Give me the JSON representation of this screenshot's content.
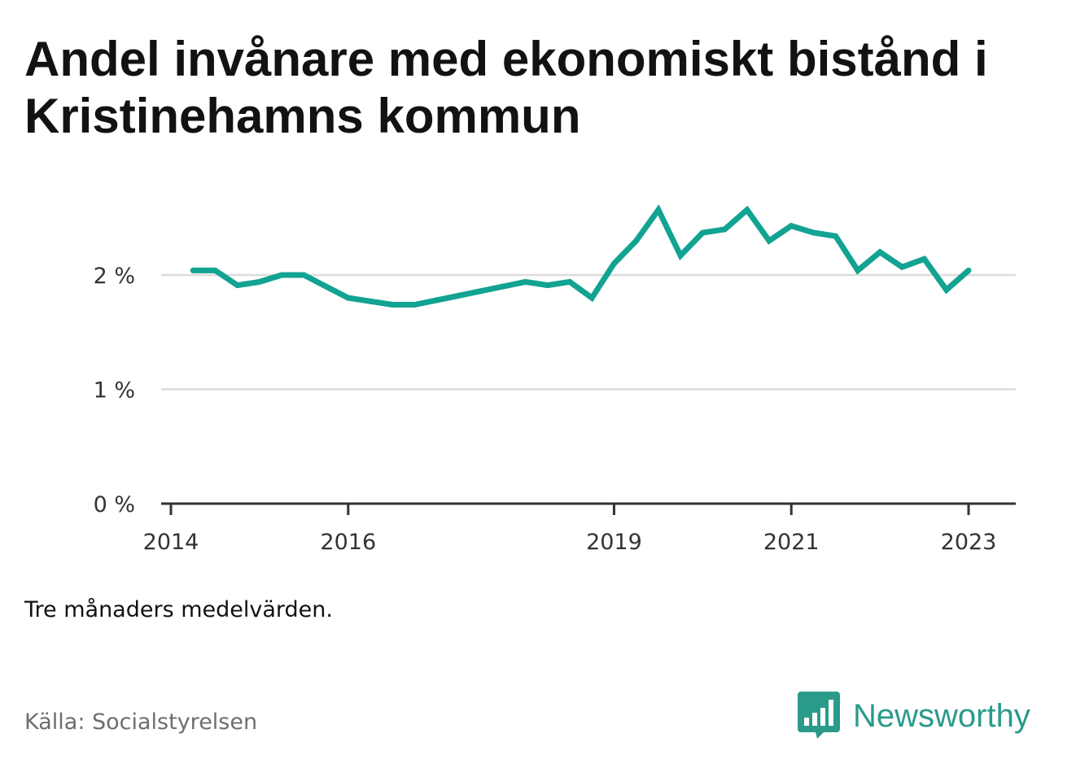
{
  "title": "Andel invånare med ekonomiskt bistånd i Kristinehamns kommun",
  "note": "Tre månaders medelvärden.",
  "source": "Källa: Socialstyrelsen",
  "brand": {
    "name": "Newsworthy",
    "icon": "bar-chart-speech-bubble-icon"
  },
  "colors": {
    "line": "#12a392",
    "brand": "#2a9b8b",
    "grid": "#dcdcdc",
    "axis": "#333333"
  },
  "chart_data": {
    "type": "line",
    "title": "Andel invånare med ekonomiskt bistånd i Kristinehamns kommun",
    "xlabel": "",
    "ylabel": "",
    "ylim": [
      0,
      2.7
    ],
    "xlim": [
      2014.0,
      2023.35
    ],
    "grid": true,
    "legend": "none",
    "y_ticks": [
      {
        "value": 0,
        "label": "0 %"
      },
      {
        "value": 1,
        "label": "1 %"
      },
      {
        "value": 2,
        "label": "2 %"
      }
    ],
    "x_ticks": [
      {
        "value": 2014,
        "label": "2014"
      },
      {
        "value": 2016,
        "label": "2016"
      },
      {
        "value": 2019,
        "label": "2019"
      },
      {
        "value": 2021,
        "label": "2021"
      },
      {
        "value": 2023,
        "label": "2023"
      }
    ],
    "series": [
      {
        "values": [
          {
            "x": 2014.25,
            "y": 2.04
          },
          {
            "x": 2014.5,
            "y": 2.04
          },
          {
            "x": 2014.75,
            "y": 1.91
          },
          {
            "x": 2015.0,
            "y": 1.94
          },
          {
            "x": 2015.25,
            "y": 2.0
          },
          {
            "x": 2015.5,
            "y": 2.0
          },
          {
            "x": 2015.75,
            "y": 1.9
          },
          {
            "x": 2016.0,
            "y": 1.8
          },
          {
            "x": 2016.25,
            "y": 1.77
          },
          {
            "x": 2016.5,
            "y": 1.74
          },
          {
            "x": 2016.75,
            "y": 1.74
          },
          {
            "x": 2017.0,
            "y": 1.78
          },
          {
            "x": 2017.25,
            "y": 1.82
          },
          {
            "x": 2017.5,
            "y": 1.86
          },
          {
            "x": 2017.75,
            "y": 1.9
          },
          {
            "x": 2018.0,
            "y": 1.94
          },
          {
            "x": 2018.25,
            "y": 1.91
          },
          {
            "x": 2018.5,
            "y": 1.94
          },
          {
            "x": 2018.75,
            "y": 1.8
          },
          {
            "x": 2019.0,
            "y": 2.1
          },
          {
            "x": 2019.25,
            "y": 2.3
          },
          {
            "x": 2019.5,
            "y": 2.57
          },
          {
            "x": 2019.75,
            "y": 2.17
          },
          {
            "x": 2020.0,
            "y": 2.37
          },
          {
            "x": 2020.25,
            "y": 2.4
          },
          {
            "x": 2020.5,
            "y": 2.57
          },
          {
            "x": 2020.75,
            "y": 2.3
          },
          {
            "x": 2021.0,
            "y": 2.43
          },
          {
            "x": 2021.25,
            "y": 2.37
          },
          {
            "x": 2021.5,
            "y": 2.34
          },
          {
            "x": 2021.75,
            "y": 2.04
          },
          {
            "x": 2022.0,
            "y": 2.2
          },
          {
            "x": 2022.25,
            "y": 2.07
          },
          {
            "x": 2022.5,
            "y": 2.14
          },
          {
            "x": 2022.75,
            "y": 1.87
          },
          {
            "x": 2023.0,
            "y": 2.04
          }
        ]
      }
    ]
  }
}
